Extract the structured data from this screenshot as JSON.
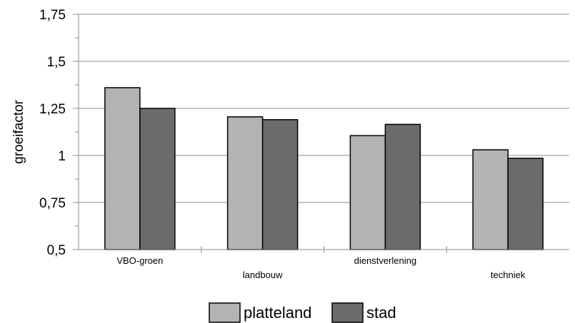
{
  "chart_data": {
    "type": "bar",
    "title": "",
    "xlabel": "",
    "ylabel": "groeifactor",
    "ylim": [
      0.5,
      1.75
    ],
    "yticks": [
      0.5,
      0.75,
      1,
      1.25,
      1.5,
      1.75
    ],
    "ytick_labels": [
      "0,5",
      "0,75",
      "1",
      "1,25",
      "1,5",
      "1,75"
    ],
    "grid": true,
    "legend_position": "bottom",
    "categories": [
      "VBO-groen",
      "landbouw",
      "dienstverlening",
      "techniek"
    ],
    "series": [
      {
        "name": "platteland",
        "color": "#b3b3b3",
        "values": [
          1.36,
          1.205,
          1.105,
          1.03
        ]
      },
      {
        "name": "stad",
        "color": "#6b6b6b",
        "values": [
          1.25,
          1.19,
          1.165,
          0.985
        ]
      }
    ]
  }
}
